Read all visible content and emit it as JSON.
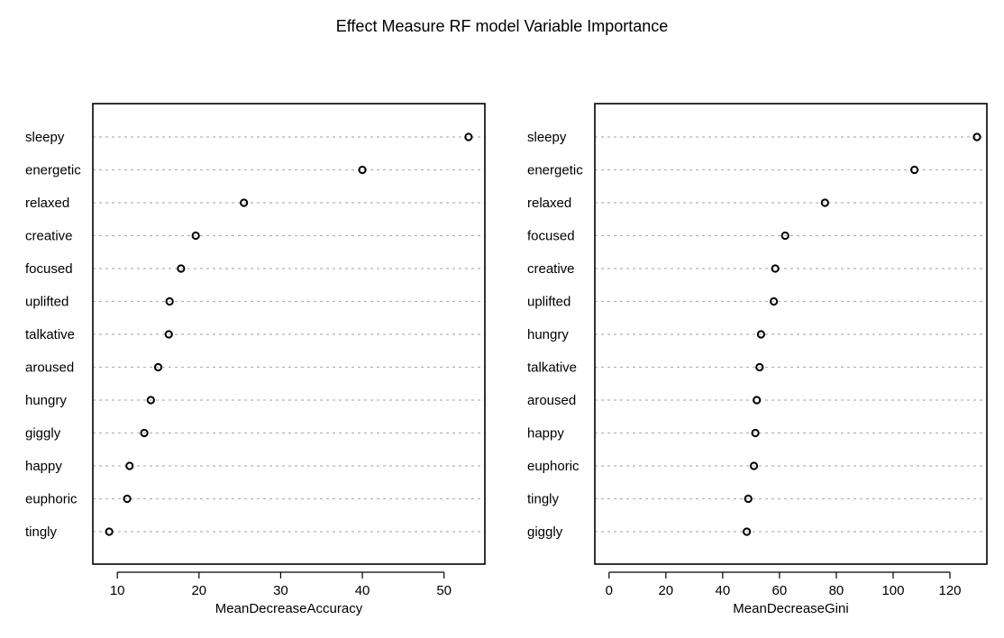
{
  "title": "Effect Measure RF model Variable Importance",
  "chart_data": [
    {
      "type": "scatter",
      "subtype": "dotchart",
      "xlabel": "MeanDecreaseAccuracy",
      "xlim": [
        7,
        55
      ],
      "xticks": [
        10,
        20,
        30,
        40,
        50
      ],
      "grid": "dotted horizontal per category",
      "categories": [
        "sleepy",
        "energetic",
        "relaxed",
        "creative",
        "focused",
        "uplifted",
        "talkative",
        "aroused",
        "hungry",
        "giggly",
        "happy",
        "euphoric",
        "tingly"
      ],
      "values": [
        53.0,
        40.0,
        25.5,
        19.6,
        17.8,
        16.4,
        16.3,
        15.0,
        14.1,
        13.3,
        11.5,
        11.2,
        9.0
      ]
    },
    {
      "type": "scatter",
      "subtype": "dotchart",
      "xlabel": "MeanDecreaseGini",
      "xlim": [
        -5,
        133
      ],
      "xticks": [
        0,
        20,
        40,
        60,
        80,
        100,
        120
      ],
      "grid": "dotted horizontal per category",
      "categories": [
        "sleepy",
        "energetic",
        "relaxed",
        "focused",
        "creative",
        "uplifted",
        "hungry",
        "talkative",
        "aroused",
        "happy",
        "euphoric",
        "tingly",
        "giggly"
      ],
      "values": [
        129.5,
        107.5,
        76.0,
        62.0,
        58.5,
        58.0,
        53.5,
        53.0,
        52.0,
        51.5,
        51.0,
        49.0,
        48.5
      ]
    }
  ]
}
